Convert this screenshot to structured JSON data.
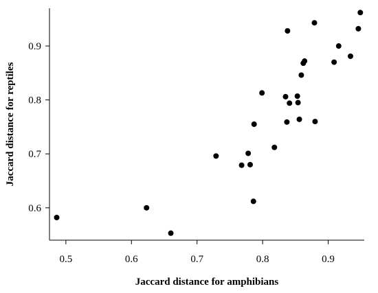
{
  "chart_data": {
    "type": "scatter",
    "title": "",
    "xlabel": "Jaccard distance for amphibians",
    "ylabel": "Jaccard distance for reptiles",
    "xlim": [
      0.475,
      0.955
    ],
    "ylim": [
      0.54,
      0.97
    ],
    "xticks": [
      "0.5",
      "0.6",
      "0.7",
      "0.8",
      "0.9"
    ],
    "yticks": [
      "0.6",
      "0.7",
      "0.8",
      "0.9"
    ],
    "grid": false,
    "marker_color": "#000000",
    "points": [
      {
        "x": 0.486,
        "y": 0.582
      },
      {
        "x": 0.623,
        "y": 0.6
      },
      {
        "x": 0.66,
        "y": 0.553
      },
      {
        "x": 0.729,
        "y": 0.696
      },
      {
        "x": 0.768,
        "y": 0.679
      },
      {
        "x": 0.778,
        "y": 0.701
      },
      {
        "x": 0.781,
        "y": 0.68
      },
      {
        "x": 0.786,
        "y": 0.612
      },
      {
        "x": 0.787,
        "y": 0.755
      },
      {
        "x": 0.799,
        "y": 0.813
      },
      {
        "x": 0.818,
        "y": 0.712
      },
      {
        "x": 0.835,
        "y": 0.806
      },
      {
        "x": 0.837,
        "y": 0.759
      },
      {
        "x": 0.838,
        "y": 0.928
      },
      {
        "x": 0.841,
        "y": 0.794
      },
      {
        "x": 0.853,
        "y": 0.807
      },
      {
        "x": 0.854,
        "y": 0.795
      },
      {
        "x": 0.856,
        "y": 0.764
      },
      {
        "x": 0.859,
        "y": 0.846
      },
      {
        "x": 0.862,
        "y": 0.868
      },
      {
        "x": 0.864,
        "y": 0.872
      },
      {
        "x": 0.879,
        "y": 0.943
      },
      {
        "x": 0.88,
        "y": 0.76
      },
      {
        "x": 0.909,
        "y": 0.87
      },
      {
        "x": 0.916,
        "y": 0.9
      },
      {
        "x": 0.934,
        "y": 0.881
      },
      {
        "x": 0.946,
        "y": 0.932
      },
      {
        "x": 0.949,
        "y": 0.962
      }
    ]
  }
}
